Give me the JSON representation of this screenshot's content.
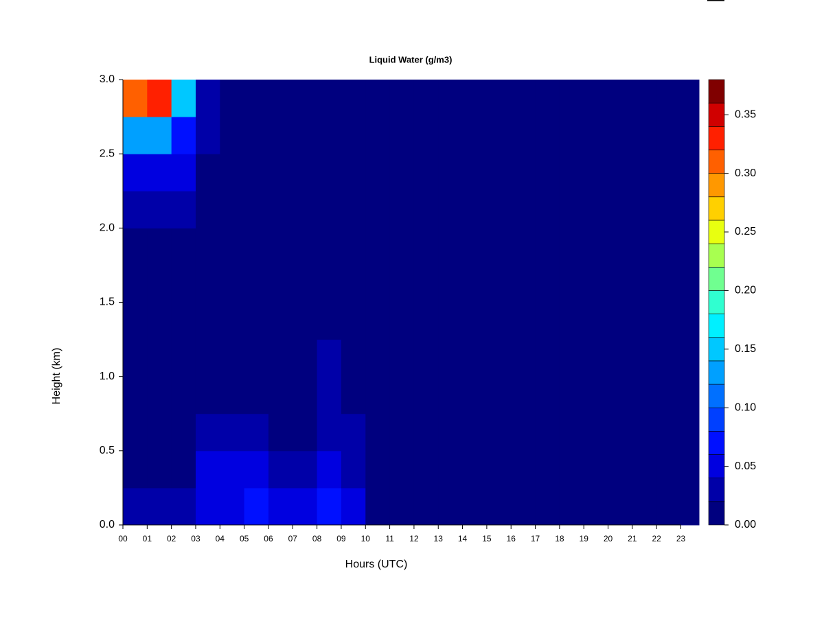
{
  "chart_data": {
    "type": "heatmap",
    "title": "Liquid Water (g/m3)",
    "x_label": "Hours (UTC)",
    "y_label": "Height (km)",
    "x_edges": [
      0,
      1,
      2,
      3,
      4,
      5,
      6,
      7,
      8,
      9,
      10,
      11,
      12,
      13,
      14,
      15,
      16,
      17,
      18,
      19,
      20,
      21,
      22,
      23,
      23.75
    ],
    "y_edges": [
      0,
      0.25,
      0.5,
      0.75,
      1,
      1.25,
      1.5,
      1.75,
      2,
      2.25,
      2.5,
      2.75,
      3
    ],
    "z": [
      [
        0.03,
        0.03,
        0.025,
        0.05,
        0.05,
        0.06,
        0.05,
        0.05,
        0.07,
        0.05,
        0.01,
        0.01,
        0.01,
        0.01,
        0.01,
        0.01,
        0.01,
        0.01,
        0.01,
        0.01,
        0.01,
        0.01,
        0.01,
        0.01
      ],
      [
        0.01,
        0.01,
        0.01,
        0.04,
        0.045,
        0.04,
        0.03,
        0.035,
        0.05,
        0.035,
        0.01,
        0.01,
        0.01,
        0.01,
        0.01,
        0.01,
        0.01,
        0.01,
        0.01,
        0.01,
        0.01,
        0.01,
        0.01,
        0.01
      ],
      [
        0.01,
        0.01,
        0.01,
        0.025,
        0.03,
        0.025,
        0.01,
        0.01,
        0.03,
        0.025,
        0.01,
        0.01,
        0.01,
        0.01,
        0.01,
        0.01,
        0.01,
        0.01,
        0.01,
        0.01,
        0.01,
        0.01,
        0.01,
        0.01
      ],
      [
        0.01,
        0.01,
        0.01,
        0.01,
        0.01,
        0.01,
        0.01,
        0.01,
        0.025,
        0.01,
        0.01,
        0.01,
        0.01,
        0.01,
        0.01,
        0.01,
        0.01,
        0.01,
        0.01,
        0.01,
        0.01,
        0.01,
        0.01,
        0.01
      ],
      [
        0.01,
        0.01,
        0.01,
        0.01,
        0.01,
        0.01,
        0.01,
        0.01,
        0.025,
        0.01,
        0.01,
        0.01,
        0.01,
        0.01,
        0.01,
        0.01,
        0.01,
        0.01,
        0.01,
        0.01,
        0.01,
        0.01,
        0.01,
        0.01
      ],
      [
        0.01,
        0.01,
        0.01,
        0.01,
        0.01,
        0.01,
        0.01,
        0.01,
        0.01,
        0.01,
        0.01,
        0.01,
        0.01,
        0.01,
        0.01,
        0.01,
        0.015,
        0.01,
        0.01,
        0.01,
        0.01,
        0.01,
        0.01,
        0.01
      ],
      [
        0.01,
        0.01,
        0.01,
        0.01,
        0.01,
        0.01,
        0.01,
        0.01,
        0.01,
        0.01,
        0.01,
        0.01,
        0.01,
        0.01,
        0.01,
        0.01,
        0.01,
        0.01,
        0.01,
        0.01,
        0.01,
        0.01,
        0.01,
        0.01
      ],
      [
        0.01,
        0.01,
        0.01,
        0.01,
        0.01,
        0.01,
        0.01,
        0.01,
        0.01,
        0.01,
        0.01,
        0.01,
        0.01,
        0.01,
        0.01,
        0.01,
        0.01,
        0.01,
        0.01,
        0.01,
        0.01,
        0.01,
        0.01,
        0.01
      ],
      [
        0.03,
        0.025,
        0.02,
        0.01,
        0.01,
        0.01,
        0.01,
        0.01,
        0.01,
        0.01,
        0.01,
        0.01,
        0.01,
        0.01,
        0.01,
        0.01,
        0.01,
        0.01,
        0.01,
        0.01,
        0.01,
        0.01,
        0.01,
        0.01
      ],
      [
        0.05,
        0.05,
        0.045,
        0.01,
        0.01,
        0.01,
        0.01,
        0.01,
        0.01,
        0.01,
        0.01,
        0.01,
        0.01,
        0.01,
        0.01,
        0.01,
        0.01,
        0.01,
        0.01,
        0.01,
        0.01,
        0.01,
        0.01,
        0.01
      ],
      [
        0.13,
        0.12,
        0.07,
        0.02,
        0.01,
        0.01,
        0.01,
        0.01,
        0.01,
        0.01,
        0.01,
        0.01,
        0.01,
        0.01,
        0.01,
        0.01,
        0.01,
        0.01,
        0.01,
        0.01,
        0.01,
        0.01,
        0.01,
        0.01
      ],
      [
        0.3,
        0.33,
        0.15,
        0.03,
        0.01,
        0.01,
        0.01,
        0.01,
        0.01,
        0.01,
        0.01,
        0.01,
        0.01,
        0.01,
        0.01,
        0.01,
        0.01,
        0.01,
        0.01,
        0.01,
        0.01,
        0.01,
        0.01,
        0.01
      ]
    ],
    "xlim": [
      0,
      23.75
    ],
    "ylim": [
      0,
      3
    ],
    "xticks": [
      {
        "value": 0,
        "label": "00"
      },
      {
        "value": 1,
        "label": "01"
      },
      {
        "value": 2,
        "label": "02"
      },
      {
        "value": 3,
        "label": "03"
      },
      {
        "value": 4,
        "label": "04"
      },
      {
        "value": 5,
        "label": "05"
      },
      {
        "value": 6,
        "label": "06"
      },
      {
        "value": 7,
        "label": "07"
      },
      {
        "value": 8,
        "label": "08"
      },
      {
        "value": 9,
        "label": "09"
      },
      {
        "value": 10,
        "label": "10"
      },
      {
        "value": 11,
        "label": "11"
      },
      {
        "value": 12,
        "label": "12"
      },
      {
        "value": 13,
        "label": "13"
      },
      {
        "value": 14,
        "label": "14"
      },
      {
        "value": 15,
        "label": "15"
      },
      {
        "value": 16,
        "label": "16"
      },
      {
        "value": 17,
        "label": "17"
      },
      {
        "value": 18,
        "label": "18"
      },
      {
        "value": 19,
        "label": "19"
      },
      {
        "value": 20,
        "label": "20"
      },
      {
        "value": 21,
        "label": "21"
      },
      {
        "value": 22,
        "label": "22"
      },
      {
        "value": 23,
        "label": "23"
      }
    ],
    "yticks": [
      {
        "value": 0,
        "label": "0.0"
      },
      {
        "value": 0.5,
        "label": "0.5"
      },
      {
        "value": 1,
        "label": "1.0"
      },
      {
        "value": 1.5,
        "label": "1.5"
      },
      {
        "value": 2,
        "label": "2.0"
      },
      {
        "value": 2.5,
        "label": "2.5"
      },
      {
        "value": 3,
        "label": "3.0"
      }
    ],
    "levels": [
      0,
      0.02,
      0.04,
      0.06,
      0.08,
      0.1,
      0.12,
      0.14,
      0.16,
      0.18,
      0.2,
      0.22,
      0.24,
      0.26,
      0.28,
      0.3,
      0.32,
      0.34,
      0.36,
      0.38
    ],
    "colors": [
      "#00007f",
      "#0000a8",
      "#0000e0",
      "#0010ff",
      "#0040ff",
      "#0070ff",
      "#00a0ff",
      "#00c8ff",
      "#00f0ff",
      "#30ffd0",
      "#70ff90",
      "#a8ff50",
      "#e8ff10",
      "#ffd000",
      "#ff9800",
      "#ff6000",
      "#ff2000",
      "#d00000",
      "#800000"
    ],
    "colorbar_lim": [
      0,
      0.38
    ],
    "colorbar_ticks": [
      {
        "value": 0,
        "label": "0.00"
      },
      {
        "value": 0.05,
        "label": "0.05"
      },
      {
        "value": 0.1,
        "label": "0.10"
      },
      {
        "value": 0.15,
        "label": "0.15"
      },
      {
        "value": 0.2,
        "label": "0.20"
      },
      {
        "value": 0.25,
        "label": "0.25"
      },
      {
        "value": 0.3,
        "label": "0.30"
      },
      {
        "value": 0.35,
        "label": "0.35"
      }
    ]
  }
}
